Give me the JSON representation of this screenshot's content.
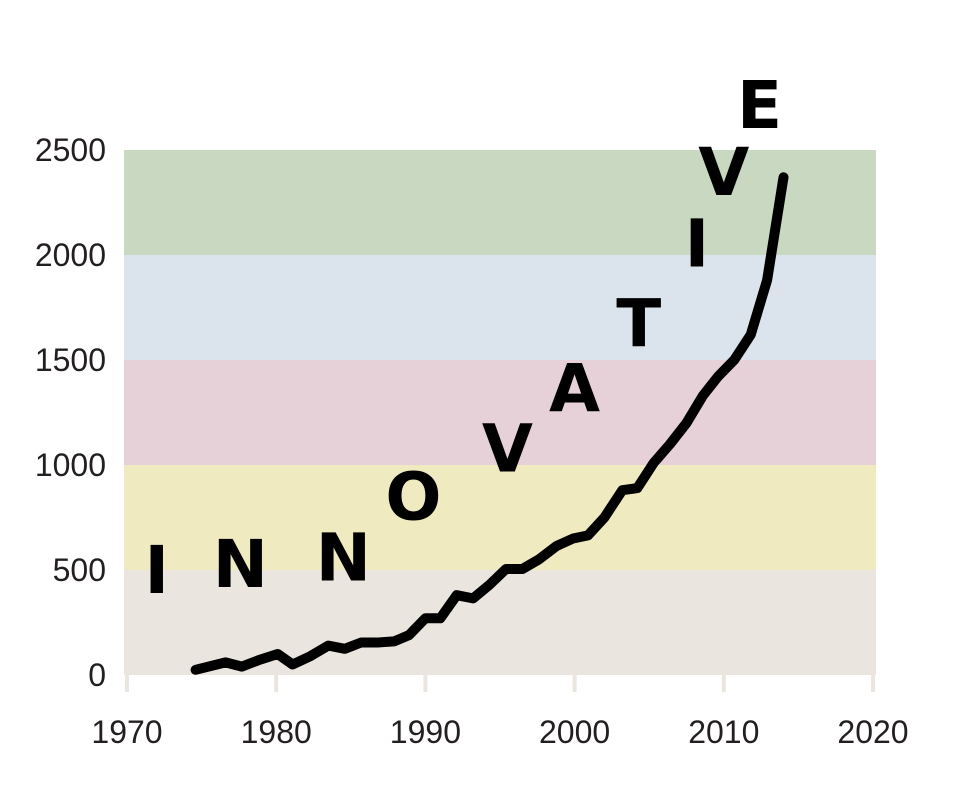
{
  "chart_data": {
    "type": "line",
    "title": "",
    "xlabel": "",
    "ylabel": "",
    "xlim": [
      1970,
      2020
    ],
    "ylim": [
      0,
      2500
    ],
    "x_ticks": [
      "1970",
      "1980",
      "1990",
      "2000",
      "2010",
      "2020"
    ],
    "y_ticks": [
      "0",
      "500",
      "1000",
      "1500",
      "2000",
      "2500"
    ],
    "bands": [
      {
        "from": 0,
        "to": 500,
        "color": "#ebe5df"
      },
      {
        "from": 500,
        "to": 1000,
        "color": "#f0eac0"
      },
      {
        "from": 1000,
        "to": 1500,
        "color": "#e6d1d8"
      },
      {
        "from": 1500,
        "to": 2000,
        "color": "#dbe4ec"
      },
      {
        "from": 2000,
        "to": 2500,
        "color": "#c9d8c0"
      }
    ],
    "line_color": "#000000",
    "series": [
      {
        "x": [
          1974.6,
          1976.6,
          1977.7,
          1978.8,
          1980.1,
          1981.1,
          1982.3,
          1983.5,
          1984.6,
          1985.7,
          1986.8,
          1987.9,
          1988.9,
          1990.0,
          1991.0,
          1992.1,
          1993.2,
          1994.3,
          1995.4,
          1996.5,
          1997.6,
          1998.8,
          1999.9,
          2000.9,
          2002.0,
          2003.2,
          2004.2,
          2005.3,
          2006.4,
          2007.5,
          2008.6,
          2009.6,
          2010.7,
          2011.8,
          2012.9,
          2014.0
        ],
        "y": [
          25,
          60,
          40,
          70,
          100,
          50,
          90,
          140,
          125,
          155,
          155,
          160,
          190,
          270,
          270,
          380,
          365,
          430,
          505,
          505,
          550,
          615,
          650,
          665,
          750,
          880,
          890,
          1010,
          1100,
          1200,
          1330,
          1420,
          1500,
          1620,
          1880,
          2370
        ]
      }
    ],
    "annotation_letters": [
      {
        "char": "I",
        "x": 1972.0,
        "y": 390
      },
      {
        "char": "N",
        "x": 1977.6,
        "y": 420
      },
      {
        "char": "N",
        "x": 1984.5,
        "y": 450
      },
      {
        "char": "O",
        "x": 1989.2,
        "y": 740
      },
      {
        "char": "V",
        "x": 1995.5,
        "y": 970
      },
      {
        "char": "A",
        "x": 2000.0,
        "y": 1255
      },
      {
        "char": "T",
        "x": 2004.3,
        "y": 1565
      },
      {
        "char": "I",
        "x": 2008.2,
        "y": 1945
      },
      {
        "char": "V",
        "x": 2010.0,
        "y": 2285
      },
      {
        "char": "E",
        "x": 2012.4,
        "y": 2605
      }
    ]
  }
}
